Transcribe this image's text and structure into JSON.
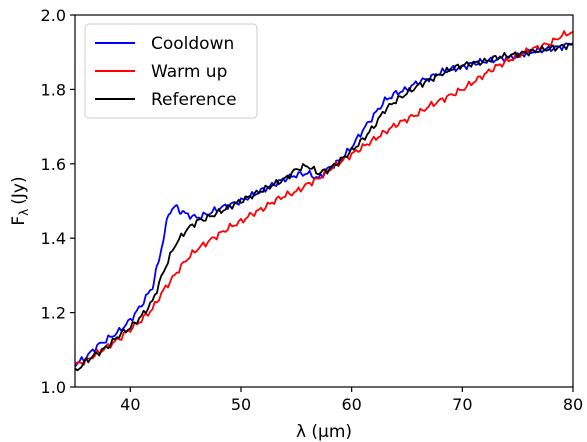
{
  "chart_data": {
    "type": "line",
    "xlabel": "λ (μm)",
    "ylabel": "F",
    "ylabel_sub": "λ",
    "ylabel_unit": "(Jy)",
    "xlim": [
      35,
      80
    ],
    "ylim": [
      1.0,
      2.0
    ],
    "xticks": [
      40,
      50,
      60,
      70,
      80
    ],
    "yticks": [
      1.0,
      1.2,
      1.4,
      1.6,
      1.8,
      2.0
    ],
    "xtick_labels": [
      "40",
      "50",
      "60",
      "70",
      "80"
    ],
    "ytick_labels": [
      "1.0",
      "1.2",
      "1.4",
      "1.6",
      "1.8",
      "2.0"
    ],
    "grid": false,
    "legend_position": "top-left",
    "series": [
      {
        "name": "Cooldown",
        "color": "#0000ff",
        "points": [
          [
            35.0,
            1.06
          ],
          [
            36.0,
            1.08
          ],
          [
            37.0,
            1.11
          ],
          [
            38.0,
            1.13
          ],
          [
            39.0,
            1.15
          ],
          [
            40.0,
            1.18
          ],
          [
            41.0,
            1.22
          ],
          [
            42.0,
            1.27
          ],
          [
            42.5,
            1.33
          ],
          [
            43.0,
            1.4
          ],
          [
            43.5,
            1.47
          ],
          [
            44.0,
            1.485
          ],
          [
            44.5,
            1.475
          ],
          [
            45.0,
            1.465
          ],
          [
            46.0,
            1.455
          ],
          [
            47.0,
            1.465
          ],
          [
            48.0,
            1.48
          ],
          [
            49.0,
            1.49
          ],
          [
            50.0,
            1.5
          ],
          [
            51.0,
            1.515
          ],
          [
            52.0,
            1.53
          ],
          [
            53.0,
            1.545
          ],
          [
            54.0,
            1.56
          ],
          [
            55.0,
            1.57
          ],
          [
            56.0,
            1.575
          ],
          [
            57.0,
            1.56
          ],
          [
            58.0,
            1.59
          ],
          [
            59.0,
            1.61
          ],
          [
            60.0,
            1.645
          ],
          [
            61.0,
            1.69
          ],
          [
            62.0,
            1.73
          ],
          [
            63.0,
            1.77
          ],
          [
            64.0,
            1.79
          ],
          [
            65.0,
            1.8
          ],
          [
            66.0,
            1.82
          ],
          [
            67.0,
            1.83
          ],
          [
            68.0,
            1.845
          ],
          [
            69.0,
            1.855
          ],
          [
            70.0,
            1.86
          ],
          [
            71.0,
            1.87
          ],
          [
            72.0,
            1.875
          ],
          [
            73.0,
            1.88
          ],
          [
            74.0,
            1.885
          ],
          [
            75.0,
            1.89
          ],
          [
            76.0,
            1.9
          ],
          [
            77.0,
            1.905
          ],
          [
            78.0,
            1.91
          ],
          [
            79.0,
            1.915
          ],
          [
            80.0,
            1.925
          ]
        ]
      },
      {
        "name": "Warm up",
        "color": "#ff0000",
        "points": [
          [
            35.0,
            1.06
          ],
          [
            36.0,
            1.07
          ],
          [
            37.0,
            1.09
          ],
          [
            38.0,
            1.11
          ],
          [
            39.0,
            1.13
          ],
          [
            40.0,
            1.155
          ],
          [
            41.0,
            1.18
          ],
          [
            42.0,
            1.21
          ],
          [
            43.0,
            1.26
          ],
          [
            44.0,
            1.3
          ],
          [
            45.0,
            1.34
          ],
          [
            46.0,
            1.37
          ],
          [
            47.0,
            1.39
          ],
          [
            48.0,
            1.41
          ],
          [
            49.0,
            1.43
          ],
          [
            50.0,
            1.445
          ],
          [
            51.0,
            1.465
          ],
          [
            52.0,
            1.48
          ],
          [
            53.0,
            1.5
          ],
          [
            54.0,
            1.515
          ],
          [
            55.0,
            1.525
          ],
          [
            56.0,
            1.545
          ],
          [
            57.0,
            1.56
          ],
          [
            58.0,
            1.585
          ],
          [
            59.0,
            1.605
          ],
          [
            60.0,
            1.625
          ],
          [
            61.0,
            1.645
          ],
          [
            62.0,
            1.665
          ],
          [
            63.0,
            1.685
          ],
          [
            64.0,
            1.705
          ],
          [
            65.0,
            1.72
          ],
          [
            66.0,
            1.735
          ],
          [
            67.0,
            1.755
          ],
          [
            68.0,
            1.77
          ],
          [
            69.0,
            1.785
          ],
          [
            70.0,
            1.8
          ],
          [
            71.0,
            1.82
          ],
          [
            72.0,
            1.84
          ],
          [
            73.0,
            1.86
          ],
          [
            74.0,
            1.875
          ],
          [
            75.0,
            1.89
          ],
          [
            76.0,
            1.905
          ],
          [
            77.0,
            1.915
          ],
          [
            78.0,
            1.925
          ],
          [
            79.0,
            1.945
          ],
          [
            80.0,
            1.955
          ]
        ]
      },
      {
        "name": "Reference",
        "color": "#000000",
        "points": [
          [
            35.0,
            1.04
          ],
          [
            36.0,
            1.07
          ],
          [
            37.0,
            1.09
          ],
          [
            38.0,
            1.11
          ],
          [
            39.0,
            1.14
          ],
          [
            40.0,
            1.16
          ],
          [
            41.0,
            1.19
          ],
          [
            42.0,
            1.23
          ],
          [
            43.0,
            1.31
          ],
          [
            44.0,
            1.38
          ],
          [
            45.0,
            1.42
          ],
          [
            46.0,
            1.445
          ],
          [
            47.0,
            1.455
          ],
          [
            48.0,
            1.47
          ],
          [
            49.0,
            1.485
          ],
          [
            50.0,
            1.5
          ],
          [
            51.0,
            1.515
          ],
          [
            52.0,
            1.53
          ],
          [
            53.0,
            1.545
          ],
          [
            54.0,
            1.56
          ],
          [
            55.0,
            1.585
          ],
          [
            56.0,
            1.595
          ],
          [
            57.0,
            1.575
          ],
          [
            58.0,
            1.585
          ],
          [
            59.0,
            1.61
          ],
          [
            60.0,
            1.635
          ],
          [
            61.0,
            1.665
          ],
          [
            62.0,
            1.7
          ],
          [
            63.0,
            1.745
          ],
          [
            64.0,
            1.77
          ],
          [
            65.0,
            1.79
          ],
          [
            66.0,
            1.81
          ],
          [
            67.0,
            1.825
          ],
          [
            68.0,
            1.84
          ],
          [
            69.0,
            1.855
          ],
          [
            70.0,
            1.865
          ],
          [
            71.0,
            1.87
          ],
          [
            72.0,
            1.875
          ],
          [
            73.0,
            1.885
          ],
          [
            74.0,
            1.89
          ],
          [
            75.0,
            1.895
          ],
          [
            76.0,
            1.9
          ],
          [
            77.0,
            1.905
          ],
          [
            78.0,
            1.91
          ],
          [
            79.0,
            1.915
          ],
          [
            80.0,
            1.92
          ]
        ]
      }
    ]
  }
}
